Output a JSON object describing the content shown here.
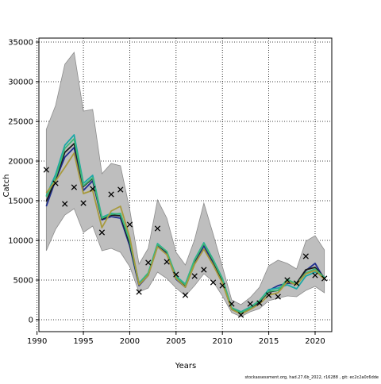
{
  "chart_data": {
    "type": "line",
    "title": "",
    "xlabel": "Years",
    "ylabel": "Catch",
    "xlim": [
      1990.2,
      2021.8
    ],
    "ylim": [
      -1500,
      35500
    ],
    "xticks": [
      1990,
      1995,
      2000,
      2005,
      2010,
      2015,
      2020
    ],
    "yticks": [
      0,
      5000,
      10000,
      15000,
      20000,
      25000,
      30000,
      35000
    ],
    "grid": true,
    "grid_style": "dotted",
    "legend": "none",
    "x": [
      1991,
      1992,
      1993,
      1994,
      1995,
      1996,
      1997,
      1998,
      1999,
      2000,
      2001,
      2002,
      2003,
      2004,
      2005,
      2006,
      2007,
      2008,
      2009,
      2010,
      2011,
      2012,
      2013,
      2014,
      2015,
      2016,
      2017,
      2018,
      2019,
      2020,
      2021
    ],
    "band": {
      "color": "#bebebe",
      "edge_color": "#8c8c8c",
      "upper": [
        24000,
        27000,
        32200,
        33700,
        26300,
        26500,
        18400,
        19700,
        19400,
        13900,
        7000,
        9000,
        15100,
        12800,
        8500,
        6900,
        10100,
        14700,
        10800,
        6700,
        2500,
        1900,
        2800,
        4100,
        6800,
        7500,
        7100,
        6400,
        9900,
        10600,
        8800
      ],
      "lower": [
        8700,
        11400,
        13200,
        14000,
        11000,
        11800,
        8700,
        9000,
        8500,
        6700,
        3500,
        4000,
        6000,
        5200,
        4000,
        3000,
        4300,
        5800,
        4800,
        3000,
        900,
        400,
        1000,
        1400,
        2400,
        2700,
        3000,
        2900,
        3700,
        4200,
        3400
      ]
    },
    "series": [
      {
        "color": "#1f2e8f",
        "values": [
          14300,
          17600,
          20500,
          21700,
          16300,
          17500,
          12600,
          13000,
          12800,
          9300,
          4300,
          5600,
          9300,
          8300,
          5100,
          4100,
          7100,
          9300,
          7100,
          4700,
          1300,
          800,
          1400,
          2200,
          3700,
          4300,
          4600,
          4500,
          6200,
          7100,
          5100
        ]
      },
      {
        "color": "#1a1a1a",
        "values": [
          14900,
          17700,
          21100,
          22200,
          16800,
          17800,
          12700,
          13200,
          13100,
          9600,
          4500,
          5800,
          9500,
          8500,
          5300,
          4300,
          7400,
          9600,
          7400,
          4900,
          1400,
          900,
          1500,
          2300,
          3500,
          3700,
          4700,
          4600,
          6300,
          6600,
          5300
        ]
      },
      {
        "color": "#1aa8a8",
        "values": [
          15600,
          18300,
          22000,
          23300,
          17200,
          18200,
          12900,
          13400,
          13300,
          10000,
          4600,
          5900,
          9600,
          8600,
          5500,
          4500,
          7600,
          9700,
          7600,
          5200,
          1500,
          1000,
          1600,
          2400,
          3800,
          4000,
          4400,
          3900,
          5500,
          6000,
          5400
        ]
      },
      {
        "color": "#3cb878",
        "values": [
          15500,
          17900,
          21600,
          22800,
          16900,
          17900,
          12800,
          13300,
          13400,
          9900,
          4500,
          5900,
          9500,
          8600,
          5400,
          4400,
          7500,
          9600,
          7500,
          5100,
          1500,
          900,
          1500,
          2400,
          3600,
          3700,
          5100,
          4500,
          5900,
          6400,
          5300
        ]
      },
      {
        "color": "#a89a3c",
        "values": [
          16000,
          17500,
          19200,
          21000,
          15900,
          16300,
          11600,
          13700,
          14300,
          10400,
          4400,
          5600,
          9200,
          8200,
          5200,
          4100,
          7000,
          8900,
          6900,
          4600,
          1300,
          700,
          1300,
          2000,
          3100,
          3400,
          4800,
          4400,
          5800,
          6200,
          5100
        ]
      }
    ],
    "points": {
      "marker": "x",
      "values": [
        18900,
        17200,
        14600,
        16700,
        14700,
        16500,
        11000,
        15800,
        16400,
        12000,
        3500,
        7200,
        11500,
        7300,
        5700,
        3100,
        5500,
        6300,
        4700,
        4300,
        2000,
        600,
        2000,
        2100,
        3100,
        2900,
        5000,
        4600,
        8000,
        5600,
        5200
      ]
    }
  },
  "footer": {
    "text": "stockassessment.org,  had.27.6b_2022,  r16288  ,  git:  ec2c2a0c6dde"
  }
}
